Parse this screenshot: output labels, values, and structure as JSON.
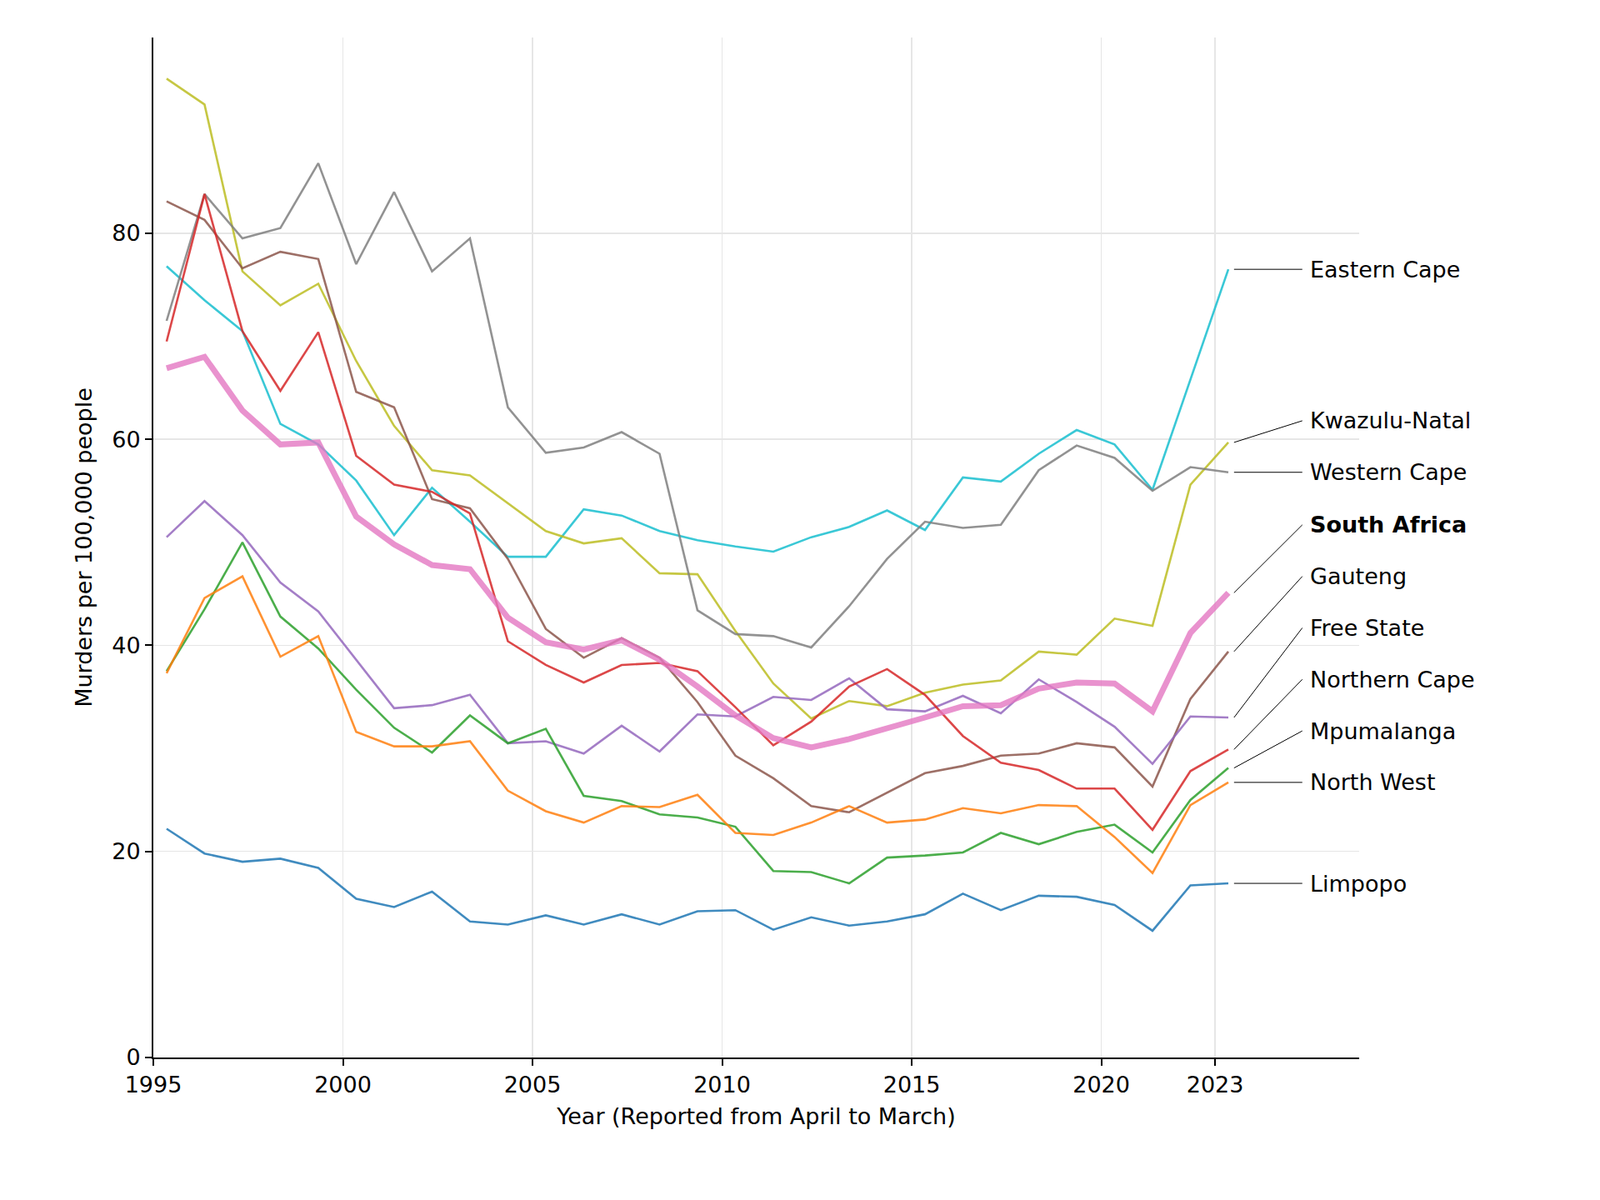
{
  "chart_data": {
    "type": "line",
    "x_label": "Year (Reported from April to March)",
    "y_label": "Murders per 100,000 people",
    "x": [
      1995.35,
      1996.35,
      1997.35,
      1998.35,
      1999.35,
      2000.35,
      2001.35,
      2002.35,
      2003.35,
      2004.35,
      2005.35,
      2006.35,
      2007.35,
      2008.35,
      2009.35,
      2010.35,
      2011.35,
      2012.35,
      2013.35,
      2014.35,
      2015.35,
      2016.35,
      2017.35,
      2018.35,
      2019.35,
      2020.35,
      2021.35,
      2022.35,
      2023.35
    ],
    "xlim": [
      1995,
      2026.8
    ],
    "ylim": [
      0,
      99
    ],
    "xticks": [
      1995,
      2000,
      2005,
      2010,
      2015,
      2020,
      2023
    ],
    "yticks": [
      0,
      20,
      40,
      60,
      80
    ],
    "grid": true,
    "series": [
      {
        "name": "Eastern Cape",
        "color": "#17becf",
        "values": [
          76.8,
          73.5,
          70.5,
          61.5,
          59.5,
          56.0,
          50.7,
          55.3,
          52.0,
          48.6,
          48.6,
          53.2,
          52.6,
          51.1,
          50.2,
          49.6,
          49.1,
          50.5,
          51.5,
          53.1,
          51.2,
          56.3,
          55.9,
          58.6,
          60.9,
          59.5,
          55.1,
          65.8,
          76.5
        ]
      },
      {
        "name": "Kwazulu-Natal",
        "color": "#bcbd22",
        "values": [
          95.0,
          92.5,
          76.3,
          73.0,
          75.1,
          67.6,
          61.3,
          57.0,
          56.5,
          53.8,
          51.1,
          49.9,
          50.4,
          47.0,
          46.9,
          41.4,
          36.3,
          32.9,
          34.6,
          34.1,
          35.4,
          36.2,
          36.6,
          39.4,
          39.1,
          42.6,
          41.9,
          55.6,
          59.7
        ]
      },
      {
        "name": "Western Cape",
        "color": "#7f7f7f",
        "values": [
          71.5,
          83.8,
          79.5,
          80.5,
          86.8,
          77.0,
          84.0,
          76.3,
          79.5,
          63.1,
          58.7,
          59.2,
          60.7,
          58.6,
          43.4,
          41.1,
          40.9,
          39.8,
          43.8,
          48.4,
          52.0,
          51.4,
          51.7,
          57.0,
          59.4,
          58.2,
          55.0,
          57.3,
          56.8
        ]
      },
      {
        "name": "South Africa",
        "color": "#e377c2",
        "line_style": "thick",
        "values": [
          66.9,
          68.0,
          62.8,
          59.5,
          59.7,
          52.5,
          49.8,
          47.8,
          47.4,
          42.7,
          40.3,
          39.6,
          40.5,
          38.6,
          36.0,
          33.2,
          31.0,
          30.1,
          30.9,
          31.9,
          33.0,
          34.1,
          34.2,
          35.8,
          36.4,
          36.3,
          33.6,
          41.2,
          45.1
        ]
      },
      {
        "name": "Gauteng",
        "color": "#8c564b",
        "values": [
          83.1,
          81.3,
          76.6,
          78.2,
          77.5,
          64.6,
          63.1,
          54.2,
          53.3,
          48.4,
          41.6,
          38.8,
          40.7,
          38.8,
          34.5,
          29.3,
          27.1,
          24.4,
          23.8,
          25.7,
          27.6,
          28.3,
          29.3,
          29.5,
          30.5,
          30.1,
          26.3,
          34.8,
          39.4
        ]
      },
      {
        "name": "Free State",
        "color": "#9467bd",
        "values": [
          50.5,
          54.0,
          50.7,
          46.1,
          43.3,
          38.6,
          33.9,
          34.2,
          35.2,
          30.5,
          30.7,
          29.5,
          32.2,
          29.7,
          33.3,
          33.1,
          35.0,
          34.7,
          36.8,
          33.8,
          33.6,
          35.1,
          33.4,
          36.7,
          34.5,
          32.1,
          28.5,
          33.1,
          33.0
        ]
      },
      {
        "name": "Northern Cape",
        "color": "#d62728",
        "values": [
          69.5,
          83.8,
          70.5,
          64.7,
          70.4,
          58.4,
          55.6,
          54.9,
          52.8,
          40.4,
          38.1,
          36.4,
          38.1,
          38.3,
          37.5,
          34.0,
          30.3,
          32.6,
          36.0,
          37.7,
          35.2,
          31.2,
          28.6,
          27.9,
          26.1,
          26.1,
          22.1,
          27.8,
          29.9
        ]
      },
      {
        "name": "Mpumalanga",
        "color": "#2ca02c",
        "values": [
          37.5,
          43.5,
          50.0,
          42.8,
          39.7,
          35.7,
          32.0,
          29.6,
          33.2,
          30.5,
          31.9,
          25.4,
          24.9,
          23.6,
          23.3,
          22.4,
          18.1,
          18.0,
          16.9,
          19.4,
          19.6,
          19.9,
          21.8,
          20.7,
          21.9,
          22.6,
          19.9,
          25.0,
          28.1
        ]
      },
      {
        "name": "North West",
        "color": "#ff7f0e",
        "values": [
          37.3,
          44.6,
          46.7,
          38.9,
          40.9,
          31.6,
          30.2,
          30.2,
          30.7,
          25.9,
          23.9,
          22.8,
          24.4,
          24.3,
          25.5,
          21.8,
          21.6,
          22.8,
          24.4,
          22.8,
          23.1,
          24.2,
          23.7,
          24.5,
          24.4,
          21.4,
          17.9,
          24.5,
          26.7
        ]
      },
      {
        "name": "Limpopo",
        "color": "#1f77b4",
        "values": [
          22.2,
          19.8,
          19.0,
          19.3,
          18.4,
          15.4,
          14.6,
          16.1,
          13.2,
          12.9,
          13.8,
          12.9,
          13.9,
          12.9,
          14.2,
          14.3,
          12.4,
          13.6,
          12.8,
          13.2,
          13.9,
          15.9,
          14.3,
          15.7,
          15.6,
          14.8,
          12.3,
          16.7,
          16.9
        ]
      }
    ]
  }
}
